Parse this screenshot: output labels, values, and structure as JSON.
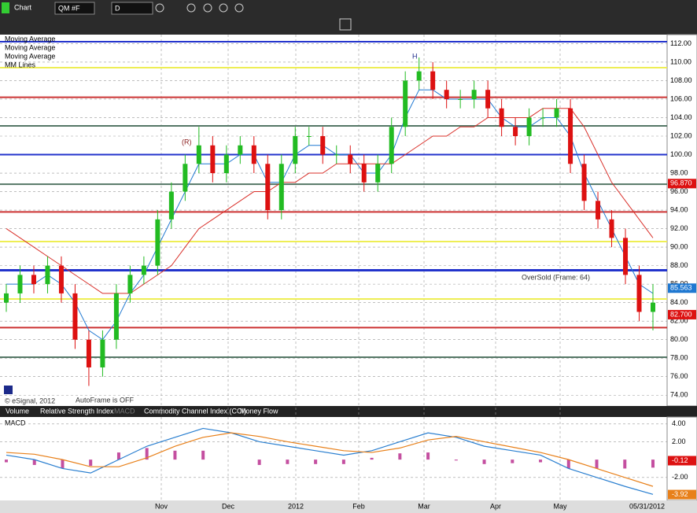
{
  "toolbar": {
    "title": "Chart",
    "symbol": "QM #F",
    "interval": "D"
  },
  "chart_data": {
    "type": "candlestick",
    "legend": [
      "Moving Average",
      "Moving Average",
      "Moving Average",
      "MM Lines"
    ],
    "annotations": {
      "peak": "H",
      "rev": "(R)",
      "oversold": "OverSold (Frame: 64)",
      "autoframe": "AutoFrame is OFF",
      "copyright": "© eSignal, 2012"
    },
    "open": [
      84,
      85,
      87,
      86,
      88,
      85,
      80,
      77,
      80,
      85,
      87,
      88,
      93,
      96,
      99,
      101,
      98,
      100,
      101,
      99,
      94,
      99,
      102,
      102,
      100,
      100,
      99,
      97,
      99,
      103,
      108,
      109,
      107,
      106,
      106,
      107,
      105,
      103,
      102,
      104,
      104,
      105,
      99,
      95,
      93,
      91,
      87,
      83
    ],
    "high": [
      86,
      88,
      88,
      89,
      89,
      86,
      81,
      81,
      86,
      88,
      89,
      94,
      97,
      100,
      103,
      102,
      101,
      102,
      102,
      100,
      100,
      103,
      103,
      103,
      101,
      101,
      100,
      100,
      104,
      109,
      110.5,
      110,
      108,
      107,
      108,
      108,
      106,
      104,
      105,
      105,
      106,
      106,
      100,
      96,
      94,
      92,
      88,
      86
    ],
    "low": [
      83,
      84,
      85,
      85,
      84,
      79,
      75,
      76,
      79,
      84,
      86,
      87,
      92,
      95,
      98,
      97,
      97,
      99,
      98,
      93,
      93,
      98,
      101,
      99,
      99,
      98,
      96,
      96,
      98,
      102,
      107,
      106,
      105,
      105,
      105,
      104,
      102,
      101,
      101,
      103,
      103,
      98,
      94,
      92,
      90,
      86,
      82,
      81
    ],
    "close": [
      85,
      87,
      86,
      88,
      85,
      80,
      77,
      80,
      85,
      87,
      88,
      93,
      96,
      99,
      101,
      98,
      100,
      101,
      99,
      94,
      99,
      102,
      102,
      100,
      100,
      99,
      97,
      99,
      103,
      108,
      109,
      107,
      106,
      106,
      107,
      105,
      103,
      102,
      104,
      104,
      105,
      99,
      95,
      93,
      91,
      87,
      83,
      84
    ],
    "series": [
      {
        "name": "Moving Average",
        "color": "#1f78d1",
        "values": [
          86,
          86,
          86,
          87,
          86,
          84,
          81,
          80,
          82,
          85,
          87,
          90,
          93,
          96,
          99,
          99,
          99,
          100,
          100,
          97,
          97,
          100,
          101,
          101,
          100,
          100,
          98,
          98,
          100,
          104,
          107,
          107,
          106,
          106,
          106,
          106,
          104,
          103,
          103,
          104,
          104,
          102,
          98,
          95,
          92,
          89,
          86,
          85
        ]
      },
      {
        "name": "Moving Average",
        "color": "#d9302a",
        "values": [
          92,
          91,
          90,
          89,
          88,
          87,
          86,
          85,
          85,
          85,
          86,
          87,
          88,
          90,
          92,
          93,
          94,
          95,
          96,
          96,
          97,
          97,
          98,
          98,
          99,
          99,
          99,
          99,
          99,
          100,
          101,
          102,
          102,
          103,
          103,
          104,
          104,
          104,
          104,
          105,
          105,
          105,
          103,
          100,
          97,
          95,
          93,
          91
        ]
      }
    ],
    "levels": [
      {
        "value": 112.2,
        "color": "#2233cc"
      },
      {
        "value": 109.4,
        "color": "#eeee55"
      },
      {
        "value": 106.2,
        "color": "#cc3333"
      },
      {
        "value": 103.1,
        "color": "#557766"
      },
      {
        "value": 100,
        "color": "#2233cc"
      },
      {
        "value": 96.8,
        "color": "#557766"
      },
      {
        "value": 93.8,
        "color": "#cc3333"
      },
      {
        "value": 90.6,
        "color": "#eeee55"
      },
      {
        "value": 87.5,
        "color": "#2233cc"
      },
      {
        "value": 84.4,
        "color": "#eeee55"
      },
      {
        "value": 81.3,
        "color": "#cc3333"
      },
      {
        "value": 78.1,
        "color": "#557766"
      }
    ],
    "flags": [
      {
        "value": 96.87,
        "label": "96.870",
        "color": "#dd1111"
      },
      {
        "value": 85.563,
        "label": "85.563",
        "color": "#1f78d1"
      },
      {
        "value": 82.7,
        "label": "82.700",
        "color": "#dd1111"
      }
    ],
    "ylim": [
      73,
      112.8
    ],
    "yticks": [
      {
        "value": 74,
        "label": "74.00"
      },
      {
        "value": 76,
        "label": "76.00"
      },
      {
        "value": 78,
        "label": "78.00"
      },
      {
        "value": 80,
        "label": "80.00"
      },
      {
        "value": 82,
        "label": "82.00"
      },
      {
        "value": 84,
        "label": "84.00"
      },
      {
        "value": 86,
        "label": "86.00"
      },
      {
        "value": 88,
        "label": "88.00"
      },
      {
        "value": 90,
        "label": "90.00"
      },
      {
        "value": 92,
        "label": "92.00"
      },
      {
        "value": 94,
        "label": "94.00"
      },
      {
        "value": 96,
        "label": "96.00"
      },
      {
        "value": 98,
        "label": "98.00"
      },
      {
        "value": 100,
        "label": "100.00"
      },
      {
        "value": 102,
        "label": "102.00"
      },
      {
        "value": 104,
        "label": "104.00"
      },
      {
        "value": 106,
        "label": "106.00"
      },
      {
        "value": 108,
        "label": "108.00"
      },
      {
        "value": 110,
        "label": "110.00"
      },
      {
        "value": 112,
        "label": "112.00"
      }
    ],
    "x_labels": [
      "Nov",
      "Dec",
      "2012",
      "Feb",
      "Mar",
      "Apr",
      "May",
      "05/31/2012"
    ]
  },
  "tabs": [
    "Volume",
    "Relative Strength Index",
    "MACD",
    "Commodity Channel Index (CCI)",
    "Money Flow"
  ],
  "macd": {
    "type": "line",
    "title": "MACD",
    "series": [
      {
        "name": "MACD",
        "color": "#2a7fd0",
        "values": [
          0.5,
          0,
          -1,
          -1.5,
          0,
          1.5,
          2.5,
          3.5,
          3,
          2,
          1.5,
          1,
          0.5,
          1,
          2,
          3,
          2.5,
          1.5,
          1,
          0.5,
          -1,
          -2,
          -3,
          -3.9
        ]
      },
      {
        "name": "Signal",
        "color": "#e8801a",
        "values": [
          0.8,
          0.6,
          0,
          -0.8,
          -0.8,
          0.2,
          1.5,
          2.5,
          3,
          2.6,
          2,
          1.5,
          1,
          0.8,
          1.3,
          2.2,
          2.6,
          2,
          1.4,
          0.8,
          0,
          -1,
          -2,
          -3
        ]
      }
    ],
    "histogram": [
      -0.3,
      -0.6,
      -1,
      -0.7,
      0.8,
      1.3,
      1,
      1,
      0,
      -0.6,
      -0.5,
      -0.5,
      -0.5,
      0.2,
      0.7,
      0.8,
      -0.1,
      -0.5,
      -0.4,
      -0.3,
      -1,
      -1,
      -1,
      -0.9
    ],
    "ylim": [
      -4.4,
      4.6
    ],
    "yticks": [
      {
        "value": 4,
        "label": "4.00"
      },
      {
        "value": 2,
        "label": "2.00"
      },
      {
        "value": -2,
        "label": "-2.00"
      }
    ],
    "flags": [
      {
        "value": -0.12,
        "label": "-0.12",
        "color": "#dd1111"
      },
      {
        "value": -3.92,
        "label": "-3.92",
        "color": "#e8801a"
      }
    ]
  }
}
